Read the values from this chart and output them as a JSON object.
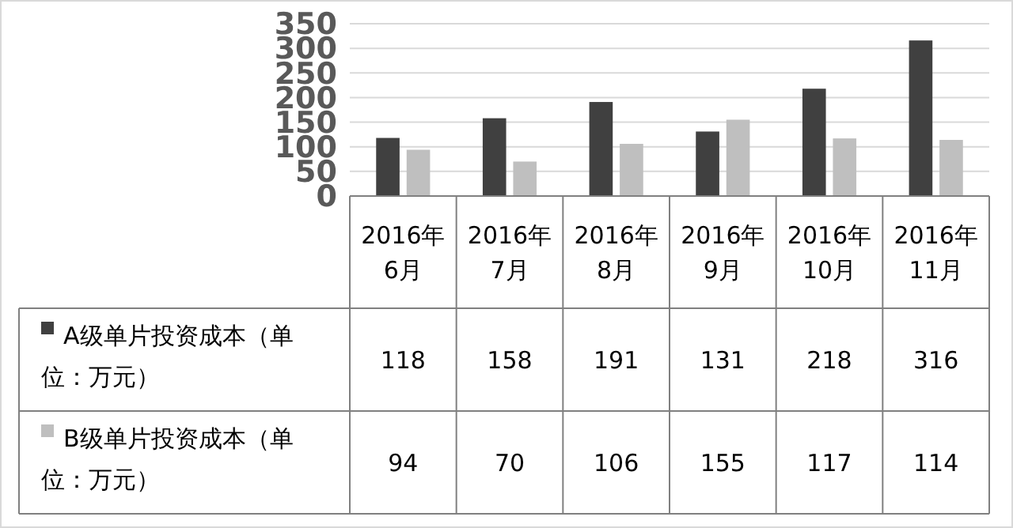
{
  "chart_data": {
    "type": "bar",
    "categories": [
      "2016年6月",
      "2016年7月",
      "2016年8月",
      "2016年9月",
      "2016年10月",
      "2016年11月"
    ],
    "series": [
      {
        "name": "A级单片投资成本（单位：万元）",
        "color": "#404040",
        "values": [
          118,
          158,
          191,
          131,
          218,
          316
        ]
      },
      {
        "name": "B级单片投资成本（单位：万元）",
        "color": "#bfbfbf",
        "values": [
          94,
          70,
          106,
          155,
          117,
          114
        ]
      }
    ],
    "ylim": [
      0,
      350
    ],
    "yticks": [
      0,
      50,
      100,
      150,
      200,
      250,
      300,
      350
    ],
    "grid": "y",
    "data_labels": true,
    "legend": "bottom"
  }
}
